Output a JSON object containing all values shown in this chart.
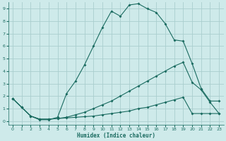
{
  "xlabel": "Humidex (Indice chaleur)",
  "background_color": "#ceeaea",
  "grid_color": "#aacece",
  "line_color": "#1a6b60",
  "xlim": [
    -0.5,
    23.5
  ],
  "ylim": [
    -0.3,
    9.5
  ],
  "xticks": [
    0,
    1,
    2,
    3,
    4,
    5,
    6,
    7,
    8,
    9,
    10,
    11,
    12,
    13,
    14,
    15,
    16,
    17,
    18,
    19,
    20,
    21,
    22,
    23
  ],
  "yticks": [
    0,
    1,
    2,
    3,
    4,
    5,
    6,
    7,
    8,
    9
  ],
  "line1_x": [
    0,
    1,
    2,
    3,
    4,
    5,
    6,
    7,
    8,
    9,
    10,
    11,
    12,
    13,
    14,
    15,
    16,
    17,
    18,
    19,
    20,
    21,
    22,
    23
  ],
  "line1_y": [
    1.8,
    1.1,
    0.4,
    0.1,
    0.1,
    0.3,
    2.2,
    3.2,
    4.5,
    6.0,
    7.5,
    8.8,
    8.4,
    9.3,
    9.4,
    9.0,
    8.7,
    7.8,
    6.5,
    6.4,
    4.6,
    2.6,
    1.6,
    1.6
  ],
  "line2_x": [
    0,
    1,
    2,
    3,
    4,
    5,
    6,
    7,
    8,
    9,
    10,
    11,
    12,
    13,
    14,
    15,
    16,
    17,
    18,
    19,
    20,
    21,
    22,
    23
  ],
  "line2_y": [
    1.8,
    1.1,
    0.4,
    0.15,
    0.15,
    0.2,
    0.3,
    0.5,
    0.7,
    1.0,
    1.3,
    1.6,
    2.0,
    2.4,
    2.8,
    3.2,
    3.6,
    4.0,
    4.4,
    4.7,
    3.1,
    2.5,
    1.5,
    0.6
  ],
  "line3_x": [
    0,
    1,
    2,
    3,
    4,
    5,
    6,
    7,
    8,
    9,
    10,
    11,
    12,
    13,
    14,
    15,
    16,
    17,
    18,
    19,
    20,
    21,
    22,
    23
  ],
  "line3_y": [
    1.8,
    1.1,
    0.4,
    0.15,
    0.15,
    0.2,
    0.25,
    0.3,
    0.35,
    0.4,
    0.5,
    0.6,
    0.7,
    0.8,
    1.0,
    1.1,
    1.3,
    1.5,
    1.7,
    1.9,
    0.6,
    0.6,
    0.6,
    0.6
  ]
}
